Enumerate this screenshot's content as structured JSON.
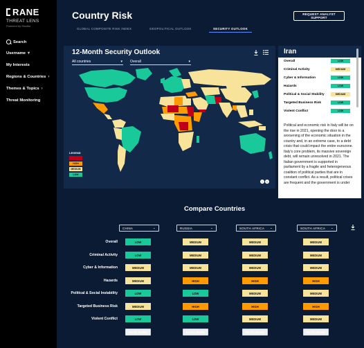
{
  "brand": {
    "logo": "RANE",
    "product": "THREAT LENS",
    "powered": "Powered by Stratfor"
  },
  "sidebar": {
    "items": [
      {
        "label": "Search",
        "icon": "search-icon"
      },
      {
        "label": "Username",
        "icon": "chevron-down-icon"
      },
      {
        "label": "My Interests"
      },
      {
        "label": "Regions & Countries",
        "icon": "chevron-right-icon"
      },
      {
        "label": "Themes & Topics",
        "icon": "chevron-right-icon"
      },
      {
        "label": "Threat Monitoring"
      }
    ]
  },
  "header": {
    "title": "Country Risk",
    "request_button": "REQUEST ANALYST SUPPORT"
  },
  "tabs": [
    {
      "label": "GLOBAL COMPOSITE RISK INDEX"
    },
    {
      "label": "GEOPOLITICAL OUTLOOK"
    },
    {
      "label": "SECURITY OUTLOOK",
      "active": true
    }
  ],
  "map": {
    "title": "12-Month Security Outlook",
    "country_select": "All countries",
    "category_select": "Overall",
    "legend": {
      "title": "LEGEND",
      "items": [
        "CRITICAL",
        "HIGH",
        "MEDIUM",
        "LOW"
      ]
    },
    "colors": {
      "critical": "#c0001a",
      "high": "#ff9a00",
      "medium": "#f8e39a",
      "low": "#19c99a",
      "nodata": "#33425b"
    }
  },
  "detail": {
    "country": "Iran",
    "risks": [
      {
        "label": "Overall",
        "level": "LOW"
      },
      {
        "label": "Criminal Activity",
        "level": "MEDIUM"
      },
      {
        "label": "Cyber & Information",
        "level": "LOW"
      },
      {
        "label": "Hazards",
        "level": "LOW"
      },
      {
        "label": "Political & Social Stability",
        "level": "MEDIUM"
      },
      {
        "label": "Targeted Business Risk",
        "level": "LOW"
      },
      {
        "label": "Violent Conflict",
        "level": "LOW"
      }
    ],
    "text": "Political and economic risk in Italy will be on the rise in 2021, opening the door to a worsening of the economic situation in the country and, in an extreme case, to a debt crisis that could impact the entire eurozone. Italy's core problem, its massive sovereign debt, will remain unresolved in 2021. The Italian government is supported in parliament by a fragile and heterogeneous coalition of political parties that are in constant conflict. As a result, political crises are frequent and the government is under"
  },
  "compare": {
    "title": "Compare Countries",
    "countries": [
      "CHINA",
      "RUSSIA",
      "SOUTH AFRICA",
      "SOUTH AFRICA"
    ],
    "categories": [
      "Overall",
      "Criminal Activity",
      "Cyber & Information",
      "Hazards",
      "Political & Social Instability",
      "Targeted Business Risk",
      "Violent Conflict"
    ],
    "levels": [
      [
        "LOW",
        "MEDIUM",
        "MEDIUM",
        "MEDIUM"
      ],
      [
        "LOW",
        "MEDIUM",
        "MEDIUM",
        "MEDIUM"
      ],
      [
        "MEDIUM",
        "MEDIUM",
        "MEDIUM",
        "MEDIUM"
      ],
      [
        "MEDIUM",
        "HIGH",
        "HIGH",
        "HIGH"
      ],
      [
        "LOW",
        "LOW",
        "MEDIUM",
        "MEDIUM"
      ],
      [
        "MEDIUM",
        "HIGH",
        "HIGH",
        "HIGH"
      ],
      [
        "LOW",
        "LOW",
        "MEDIUM",
        "MEDIUM"
      ]
    ],
    "read_more": "READ MORE"
  }
}
